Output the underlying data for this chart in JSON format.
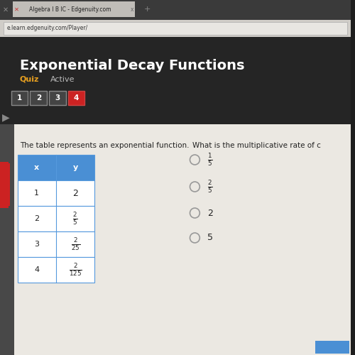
{
  "title": "Exponential Decay Functions",
  "quiz_label": "Quiz",
  "active_label": "Active",
  "nav_buttons": [
    "1",
    "2",
    "3",
    "4"
  ],
  "nav_active": 3,
  "tab_text": "Algebra I B IC - Edgenuity.com",
  "url_text": "e.learn.edgenuity.com/Player/",
  "question_text": "The table represents an exponential function.",
  "question_right": "What is the multiplicative rate of c",
  "bg_color": "#1e1e1e",
  "browser_tab_bg": "#c8c8c8",
  "browser_tab_active": "#d8d4ce",
  "browser_url_bg": "#e8e5e0",
  "header_dark": "#2a2a2a",
  "content_bg": "#ebe8e2",
  "title_color": "#ffffff",
  "quiz_color": "#e8a020",
  "active_color": "#bbbbbb",
  "nav_box_color": "#444444",
  "nav_active_color": "#cc2222",
  "nav_border_color": "#888888",
  "table_header_bg": "#4a8fd4",
  "table_header_text": "#ffffff",
  "table_border_color": "#5599dd",
  "table_cell_bg": "#ffffff",
  "question_text_color": "#222222",
  "choice_circle_color": "#999999",
  "choice_text_color": "#222222",
  "red_strip_color": "#cc2222",
  "arrow_color": "#888888"
}
